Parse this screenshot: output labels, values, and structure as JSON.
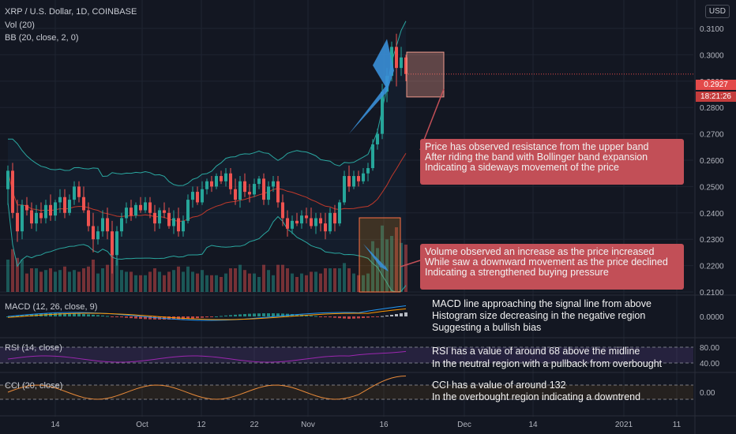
{
  "legend": {
    "title": "XRP / U.S. Dollar, 1D, COINBASE",
    "volume": "Vol (20)",
    "bb": "BB (20, close, 2, 0)",
    "macd": "MACD (12, 26, close, 9)",
    "rsi": "RSI (14, close)",
    "cci": "CCI (20, close)"
  },
  "currency_button": "USD",
  "last_price_label": "0.2927",
  "countdown_label": "18:21:26",
  "annotations": {
    "resistance": [
      "Price has observed resistance from the upper band",
      "After riding the band with Bollinger band expansion",
      "Indicating a sideways movement of the price"
    ],
    "volume": [
      "Volume observed an increase as the price increased",
      "While saw a downward movement as the price declined",
      "Indicating a strengthened buying pressure"
    ],
    "macd": [
      "MACD line approaching the signal line from above",
      "Histogram size decreasing in the negative region",
      "Suggesting a bullish bias"
    ],
    "rsi": [
      "RSI has a value of around 68 above the midline",
      "In the neutral region with a pullback from overbought"
    ],
    "cci": [
      "CCI has a value of around 132",
      "In the overbought region indicating a downtrend"
    ]
  },
  "colors": {
    "background": "#131722",
    "up": "#26a69a",
    "down": "#ef5350",
    "bb_band": "#2aa7a0",
    "bb_basis": "#c0392b",
    "macd_line": "#2196f3",
    "signal_line": "#ff9800",
    "rsi_line": "#9c27b0",
    "cci_line": "#e88a3a",
    "callout": "#c24f57",
    "arrow": "#3a8fd8"
  },
  "chart_data": {
    "type": "candlestick",
    "title": "XRP / U.S. Dollar, 1D, COINBASE",
    "price_axis_ticks": [
      "0.3100",
      "0.3000",
      "0.2900",
      "0.2800",
      "0.2700",
      "0.2600",
      "0.2500",
      "0.2400",
      "0.2300",
      "0.2200",
      "0.2100"
    ],
    "price_range": [
      0.21,
      0.316
    ],
    "macd_axis_ticks": [
      "0.0000"
    ],
    "rsi_axis_ticks": [
      "80.00",
      "40.00"
    ],
    "cci_axis_ticks": [
      "0.00"
    ],
    "time_axis_ticks": [
      "14",
      "Oct",
      "12",
      "22",
      "Nov",
      "16",
      "Dec",
      "14",
      "2021",
      "11"
    ],
    "last_price": 0.2927,
    "candles": [
      {
        "o": 0.249,
        "h": 0.258,
        "l": 0.243,
        "c": 0.256
      },
      {
        "o": 0.256,
        "h": 0.259,
        "l": 0.238,
        "c": 0.24
      },
      {
        "o": 0.24,
        "h": 0.245,
        "l": 0.229,
        "c": 0.233
      },
      {
        "o": 0.233,
        "h": 0.245,
        "l": 0.23,
        "c": 0.243
      },
      {
        "o": 0.243,
        "h": 0.246,
        "l": 0.239,
        "c": 0.241
      },
      {
        "o": 0.241,
        "h": 0.244,
        "l": 0.234,
        "c": 0.236
      },
      {
        "o": 0.236,
        "h": 0.243,
        "l": 0.233,
        "c": 0.24
      },
      {
        "o": 0.24,
        "h": 0.244,
        "l": 0.236,
        "c": 0.238
      },
      {
        "o": 0.238,
        "h": 0.245,
        "l": 0.236,
        "c": 0.243
      },
      {
        "o": 0.243,
        "h": 0.247,
        "l": 0.237,
        "c": 0.239
      },
      {
        "o": 0.239,
        "h": 0.245,
        "l": 0.237,
        "c": 0.244
      },
      {
        "o": 0.244,
        "h": 0.249,
        "l": 0.24,
        "c": 0.246
      },
      {
        "o": 0.246,
        "h": 0.249,
        "l": 0.238,
        "c": 0.24
      },
      {
        "o": 0.24,
        "h": 0.247,
        "l": 0.239,
        "c": 0.245
      },
      {
        "o": 0.245,
        "h": 0.252,
        "l": 0.243,
        "c": 0.25
      },
      {
        "o": 0.25,
        "h": 0.252,
        "l": 0.244,
        "c": 0.246
      },
      {
        "o": 0.246,
        "h": 0.25,
        "l": 0.24,
        "c": 0.241
      },
      {
        "o": 0.241,
        "h": 0.244,
        "l": 0.233,
        "c": 0.235
      },
      {
        "o": 0.235,
        "h": 0.24,
        "l": 0.225,
        "c": 0.23
      },
      {
        "o": 0.23,
        "h": 0.235,
        "l": 0.228,
        "c": 0.233
      },
      {
        "o": 0.233,
        "h": 0.241,
        "l": 0.231,
        "c": 0.238
      },
      {
        "o": 0.238,
        "h": 0.242,
        "l": 0.23,
        "c": 0.233
      },
      {
        "o": 0.233,
        "h": 0.237,
        "l": 0.217,
        "c": 0.224
      },
      {
        "o": 0.224,
        "h": 0.235,
        "l": 0.22,
        "c": 0.233
      },
      {
        "o": 0.233,
        "h": 0.24,
        "l": 0.231,
        "c": 0.238
      },
      {
        "o": 0.238,
        "h": 0.244,
        "l": 0.236,
        "c": 0.242
      },
      {
        "o": 0.242,
        "h": 0.245,
        "l": 0.237,
        "c": 0.239
      },
      {
        "o": 0.239,
        "h": 0.244,
        "l": 0.238,
        "c": 0.243
      },
      {
        "o": 0.243,
        "h": 0.246,
        "l": 0.24,
        "c": 0.241
      },
      {
        "o": 0.241,
        "h": 0.246,
        "l": 0.24,
        "c": 0.244
      },
      {
        "o": 0.244,
        "h": 0.246,
        "l": 0.238,
        "c": 0.24
      },
      {
        "o": 0.24,
        "h": 0.243,
        "l": 0.233,
        "c": 0.236
      },
      {
        "o": 0.236,
        "h": 0.242,
        "l": 0.234,
        "c": 0.241
      },
      {
        "o": 0.241,
        "h": 0.244,
        "l": 0.238,
        "c": 0.24
      },
      {
        "o": 0.24,
        "h": 0.242,
        "l": 0.234,
        "c": 0.235
      },
      {
        "o": 0.235,
        "h": 0.241,
        "l": 0.232,
        "c": 0.238
      },
      {
        "o": 0.238,
        "h": 0.242,
        "l": 0.231,
        "c": 0.233
      },
      {
        "o": 0.233,
        "h": 0.239,
        "l": 0.231,
        "c": 0.237
      },
      {
        "o": 0.237,
        "h": 0.247,
        "l": 0.236,
        "c": 0.245
      },
      {
        "o": 0.245,
        "h": 0.25,
        "l": 0.242,
        "c": 0.248
      },
      {
        "o": 0.248,
        "h": 0.25,
        "l": 0.243,
        "c": 0.244
      },
      {
        "o": 0.244,
        "h": 0.252,
        "l": 0.243,
        "c": 0.249
      },
      {
        "o": 0.249,
        "h": 0.253,
        "l": 0.247,
        "c": 0.252
      },
      {
        "o": 0.252,
        "h": 0.254,
        "l": 0.248,
        "c": 0.25
      },
      {
        "o": 0.25,
        "h": 0.255,
        "l": 0.249,
        "c": 0.254
      },
      {
        "o": 0.254,
        "h": 0.256,
        "l": 0.251,
        "c": 0.252
      },
      {
        "o": 0.252,
        "h": 0.257,
        "l": 0.25,
        "c": 0.255
      },
      {
        "o": 0.255,
        "h": 0.257,
        "l": 0.247,
        "c": 0.249
      },
      {
        "o": 0.249,
        "h": 0.253,
        "l": 0.243,
        "c": 0.245
      },
      {
        "o": 0.245,
        "h": 0.254,
        "l": 0.242,
        "c": 0.252
      },
      {
        "o": 0.252,
        "h": 0.255,
        "l": 0.246,
        "c": 0.248
      },
      {
        "o": 0.248,
        "h": 0.251,
        "l": 0.244,
        "c": 0.247
      },
      {
        "o": 0.247,
        "h": 0.253,
        "l": 0.246,
        "c": 0.251
      },
      {
        "o": 0.251,
        "h": 0.254,
        "l": 0.249,
        "c": 0.253
      },
      {
        "o": 0.253,
        "h": 0.255,
        "l": 0.243,
        "c": 0.245
      },
      {
        "o": 0.245,
        "h": 0.252,
        "l": 0.243,
        "c": 0.25
      },
      {
        "o": 0.25,
        "h": 0.254,
        "l": 0.248,
        "c": 0.252
      },
      {
        "o": 0.252,
        "h": 0.254,
        "l": 0.242,
        "c": 0.244
      },
      {
        "o": 0.244,
        "h": 0.247,
        "l": 0.235,
        "c": 0.238
      },
      {
        "o": 0.238,
        "h": 0.241,
        "l": 0.231,
        "c": 0.234
      },
      {
        "o": 0.234,
        "h": 0.239,
        "l": 0.232,
        "c": 0.237
      },
      {
        "o": 0.237,
        "h": 0.24,
        "l": 0.235,
        "c": 0.236
      },
      {
        "o": 0.236,
        "h": 0.241,
        "l": 0.234,
        "c": 0.239
      },
      {
        "o": 0.239,
        "h": 0.242,
        "l": 0.236,
        "c": 0.238
      },
      {
        "o": 0.238,
        "h": 0.242,
        "l": 0.234,
        "c": 0.235
      },
      {
        "o": 0.235,
        "h": 0.24,
        "l": 0.232,
        "c": 0.238
      },
      {
        "o": 0.238,
        "h": 0.24,
        "l": 0.233,
        "c": 0.236
      },
      {
        "o": 0.236,
        "h": 0.24,
        "l": 0.23,
        "c": 0.233
      },
      {
        "o": 0.233,
        "h": 0.242,
        "l": 0.232,
        "c": 0.24
      },
      {
        "o": 0.24,
        "h": 0.243,
        "l": 0.233,
        "c": 0.236
      },
      {
        "o": 0.236,
        "h": 0.245,
        "l": 0.235,
        "c": 0.244
      },
      {
        "o": 0.244,
        "h": 0.256,
        "l": 0.243,
        "c": 0.254
      },
      {
        "o": 0.254,
        "h": 0.258,
        "l": 0.248,
        "c": 0.25
      },
      {
        "o": 0.25,
        "h": 0.256,
        "l": 0.249,
        "c": 0.254
      },
      {
        "o": 0.254,
        "h": 0.256,
        "l": 0.25,
        "c": 0.252
      },
      {
        "o": 0.252,
        "h": 0.257,
        "l": 0.251,
        "c": 0.255
      },
      {
        "o": 0.255,
        "h": 0.259,
        "l": 0.252,
        "c": 0.257
      },
      {
        "o": 0.257,
        "h": 0.268,
        "l": 0.256,
        "c": 0.266
      },
      {
        "o": 0.266,
        "h": 0.272,
        "l": 0.264,
        "c": 0.27
      },
      {
        "o": 0.27,
        "h": 0.289,
        "l": 0.268,
        "c": 0.286
      },
      {
        "o": 0.286,
        "h": 0.295,
        "l": 0.282,
        "c": 0.292
      },
      {
        "o": 0.292,
        "h": 0.305,
        "l": 0.29,
        "c": 0.303
      },
      {
        "o": 0.303,
        "h": 0.308,
        "l": 0.288,
        "c": 0.295
      },
      {
        "o": 0.295,
        "h": 0.303,
        "l": 0.292,
        "c": 0.299
      },
      {
        "o": 0.299,
        "h": 0.3,
        "l": 0.29,
        "c": 0.2927
      }
    ],
    "rsi_levels": [
      80,
      40
    ],
    "indicator_notes": {
      "rsi_value": 68,
      "cci_value": 132
    }
  }
}
